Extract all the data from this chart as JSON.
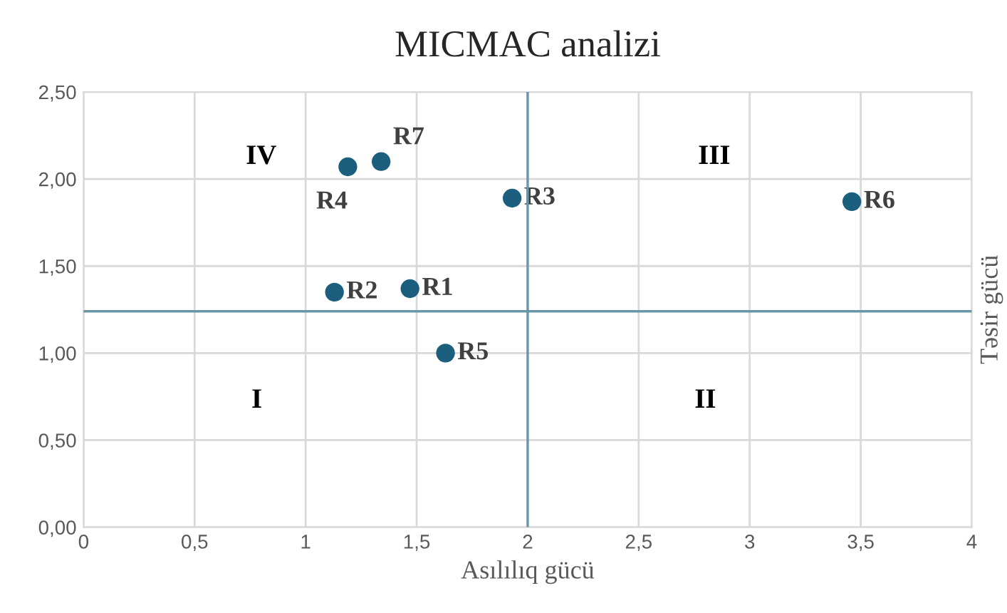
{
  "chart_data": {
    "type": "scatter",
    "title": "MICMAC analizi",
    "xlabel": "Asılılıq gücü",
    "ylabel": "Təsir gücü",
    "xlim": [
      0,
      4
    ],
    "xticks": [
      0,
      {
        "value": 0.5,
        "label": "0,5"
      },
      1,
      {
        "value": 1.5,
        "label": "1,5"
      },
      2,
      {
        "value": 2.5,
        "label": "2,5"
      },
      3,
      {
        "value": 3.5,
        "label": "3,5"
      },
      4
    ],
    "ylim": [
      0,
      2.5
    ],
    "yticks": [
      {
        "value": 0,
        "label": "0,00"
      },
      {
        "value": 0.5,
        "label": "0,50"
      },
      {
        "value": 1,
        "label": "1,00"
      },
      {
        "value": 1.5,
        "label": "1,50"
      },
      {
        "value": 2,
        "label": "2,00"
      },
      {
        "value": 2.5,
        "label": "2,50"
      }
    ],
    "grid": true,
    "marker": "circle",
    "legend": false,
    "series": [
      {
        "name": "R1",
        "color": "#1b5e7e",
        "x": [
          1.47
        ],
        "values": [
          1.37
        ]
      },
      {
        "name": "R2",
        "color": "#1b5e7e",
        "x": [
          1.13
        ],
        "values": [
          1.35
        ]
      },
      {
        "name": "R3",
        "color": "#1b5e7e",
        "x": [
          1.93
        ],
        "values": [
          1.89
        ]
      },
      {
        "name": "R4",
        "color": "#1b5e7e",
        "x": [
          1.19
        ],
        "values": [
          2.07
        ]
      },
      {
        "name": "R5",
        "color": "#1b5e7e",
        "x": [
          1.63
        ],
        "values": [
          1.0
        ]
      },
      {
        "name": "R6",
        "color": "#1b5e7e",
        "x": [
          3.46
        ],
        "values": [
          1.87
        ]
      },
      {
        "name": "R7",
        "color": "#1b5e7e",
        "x": [
          1.34
        ],
        "values": [
          2.1
        ]
      }
    ],
    "ref_lines": [
      {
        "axis": "x",
        "value": 2,
        "color": "#6a97a8"
      },
      {
        "axis": "y",
        "value": 1.24,
        "color": "#6a97a8"
      }
    ],
    "annotations": [
      "IV",
      "III",
      "I",
      "II"
    ]
  }
}
